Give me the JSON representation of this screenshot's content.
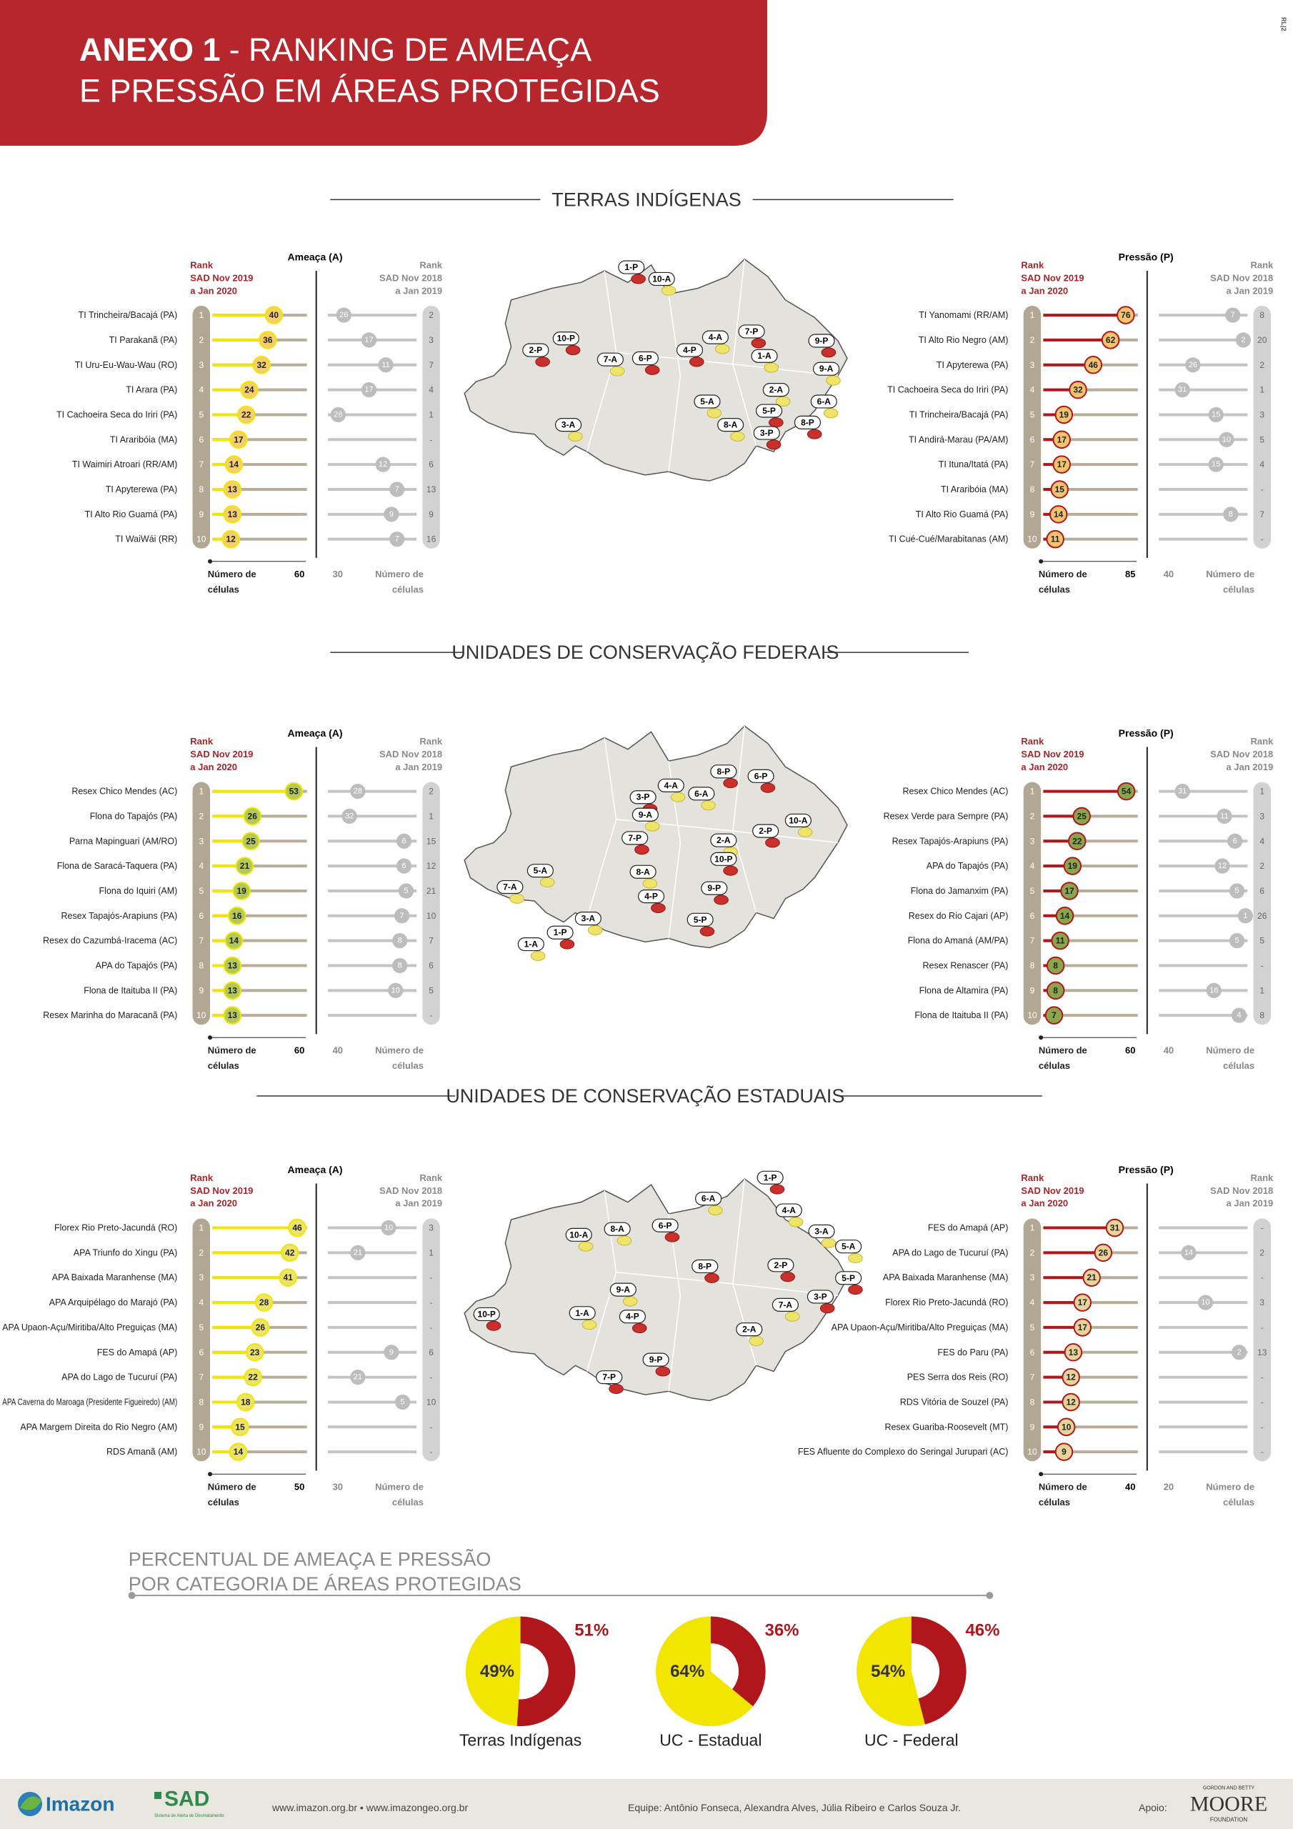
{
  "header": {
    "title_bold": "ANEXO 1",
    "title_rest": "- RANKING DE AMEAÇA",
    "title_line2": "E PRESSÃO EM ÁREAS PROTEGIDAS",
    "side_note": "RL|2"
  },
  "sections": [
    {
      "title": "TERRAS INDÍGENAS",
      "threat": {
        "measure": "Ameaça (A)",
        "rank_header": [
          "Rank",
          "SAD Nov 2019",
          "a Jan 2020"
        ],
        "prev_header": [
          "Rank",
          "SAD Nov 2018",
          "a Jan 2019"
        ],
        "axis_label": [
          "Número de",
          "células"
        ],
        "axis_max": 60,
        "prev_axis_max": 30,
        "bar_color": "#f2e500",
        "bubble_color": "#f6cf6a",
        "rows": [
          {
            "rank": 1,
            "name": "TI Trincheira/Bacajá (PA)",
            "value": 40,
            "prev_value": 26,
            "prev_rank": 2
          },
          {
            "rank": 2,
            "name": "TI Parakanã (PA)",
            "value": 36,
            "prev_value": 17,
            "prev_rank": 3
          },
          {
            "rank": 3,
            "name": "TI Uru-Eu-Wau-Wau (RO)",
            "value": 32,
            "prev_value": 11,
            "prev_rank": 7
          },
          {
            "rank": 4,
            "name": "TI Arara (PA)",
            "value": 24,
            "prev_value": 17,
            "prev_rank": 4
          },
          {
            "rank": 5,
            "name": "TI Cachoeira Seca do Iriri (PA)",
            "value": 22,
            "prev_value": 28,
            "prev_rank": 1
          },
          {
            "rank": 6,
            "name": "TI Araribóia (MA)",
            "value": 17,
            "prev_value": null,
            "prev_rank": "-"
          },
          {
            "rank": 7,
            "name": "TI Waimiri Atroari (RR/AM)",
            "value": 14,
            "prev_value": 12,
            "prev_rank": 6
          },
          {
            "rank": 8,
            "name": "TI Apyterewa (PA)",
            "value": 13,
            "prev_value": 7,
            "prev_rank": 13
          },
          {
            "rank": 9,
            "name": "TI Alto Rio Guamá (PA)",
            "value": 13,
            "prev_value": 9,
            "prev_rank": 9
          },
          {
            "rank": 10,
            "name": "TI WaiWái (RR)",
            "value": 12,
            "prev_value": 7,
            "prev_rank": 16
          }
        ]
      },
      "pressure": {
        "measure": "Pressão (P)",
        "rank_header": [
          "Rank",
          "SAD Nov 2019",
          "a Jan 2020"
        ],
        "prev_header": [
          "Rank",
          "SAD Nov 2018",
          "a Jan 2019"
        ],
        "axis_label": [
          "Número de",
          "células"
        ],
        "axis_max": 85,
        "prev_axis_max": 40,
        "bar_color": "#b1161c",
        "bubble_color": "#f3c46e",
        "rows": [
          {
            "rank": 1,
            "name": "TI Yanomami (RR/AM)",
            "value": 76,
            "prev_value": 7,
            "prev_rank": 8
          },
          {
            "rank": 2,
            "name": "TI Alto Rio Negro (AM)",
            "value": 62,
            "prev_value": 2,
            "prev_rank": 20
          },
          {
            "rank": 3,
            "name": "TI Apyterewa (PA)",
            "value": 46,
            "prev_value": 26,
            "prev_rank": 2
          },
          {
            "rank": 4,
            "name": "TI Cachoeira Seca do Iriri (PA)",
            "value": 32,
            "prev_value": 31,
            "prev_rank": 1
          },
          {
            "rank": 5,
            "name": "TI Trincheira/Bacajá (PA)",
            "value": 19,
            "prev_value": 15,
            "prev_rank": 3
          },
          {
            "rank": 6,
            "name": "TI Andirá-Marau (PA/AM)",
            "value": 17,
            "prev_value": 10,
            "prev_rank": 5
          },
          {
            "rank": 7,
            "name": "TI Ituna/Itatá (PA)",
            "value": 17,
            "prev_value": 15,
            "prev_rank": 4
          },
          {
            "rank": 8,
            "name": "TI Araribóia (MA)",
            "value": 15,
            "prev_value": null,
            "prev_rank": "-"
          },
          {
            "rank": 9,
            "name": "TI Alto Rio Guamá (PA)",
            "value": 14,
            "prev_value": 8,
            "prev_rank": 7
          },
          {
            "rank": 10,
            "name": "TI Cué-Cué/Marabitanas (AM)",
            "value": 11,
            "prev_value": null,
            "prev_rank": "-"
          }
        ]
      },
      "map_labels": [
        "1-P",
        "10-A",
        "2-P",
        "10-P",
        "7-A",
        "6-P",
        "4-P",
        "4-A",
        "7-P",
        "1-A",
        "9-P",
        "9-A",
        "2-A",
        "5-A",
        "5-P",
        "6-A",
        "8-A",
        "3-P",
        "8-P",
        "3-A"
      ]
    },
    {
      "title": "UNIDADES DE CONSERVAÇÃO FEDERAIS",
      "threat": {
        "measure": "Ameaça (A)",
        "rank_header": [
          "Rank",
          "SAD Nov 2019",
          "a Jan 2020"
        ],
        "prev_header": [
          "Rank",
          "SAD Nov 2018",
          "a Jan 2019"
        ],
        "axis_label": [
          "Número de",
          "células"
        ],
        "axis_max": 60,
        "prev_axis_max": 40,
        "bar_color": "#f2e500",
        "bubble_color": "#b3c95a",
        "rows": [
          {
            "rank": 1,
            "name": "Resex Chico Mendes (AC)",
            "value": 53,
            "prev_value": 28,
            "prev_rank": 2
          },
          {
            "rank": 2,
            "name": "Flona do Tapajós (PA)",
            "value": 26,
            "prev_value": 32,
            "prev_rank": 1
          },
          {
            "rank": 3,
            "name": "Parna Mapinguari (AM/RO)",
            "value": 25,
            "prev_value": 6,
            "prev_rank": 15
          },
          {
            "rank": 4,
            "name": "Flona de Saracá-Taquera (PA)",
            "value": 21,
            "prev_value": 6,
            "prev_rank": 12
          },
          {
            "rank": 5,
            "name": "Flona do Iquiri (AM)",
            "value": 19,
            "prev_value": 5,
            "prev_rank": 21
          },
          {
            "rank": 6,
            "name": "Resex Tapajós-Arapiuns (PA)",
            "value": 16,
            "prev_value": 7,
            "prev_rank": 10
          },
          {
            "rank": 7,
            "name": "Resex do Cazumbá-Iracema (AC)",
            "value": 14,
            "prev_value": 8,
            "prev_rank": 7
          },
          {
            "rank": 8,
            "name": "APA do Tapajós (PA)",
            "value": 13,
            "prev_value": 8,
            "prev_rank": 6
          },
          {
            "rank": 9,
            "name": "Flona de Itaituba II (PA)",
            "value": 13,
            "prev_value": 10,
            "prev_rank": 5
          },
          {
            "rank": 10,
            "name": "Resex Marinha do Maracanã (PA)",
            "value": 13,
            "prev_value": null,
            "prev_rank": "-"
          }
        ]
      },
      "pressure": {
        "measure": "Pressão (P)",
        "rank_header": [
          "Rank",
          "SAD Nov 2019",
          "a Jan 2020"
        ],
        "prev_header": [
          "Rank",
          "SAD Nov 2018",
          "a Jan 2019"
        ],
        "axis_label": [
          "Número de",
          "células"
        ],
        "axis_max": 60,
        "prev_axis_max": 40,
        "bar_color": "#b1161c",
        "bubble_color": "#8aa64c",
        "rows": [
          {
            "rank": 1,
            "name": "Resex Chico Mendes (AC)",
            "value": 54,
            "prev_value": 31,
            "prev_rank": 1
          },
          {
            "rank": 2,
            "name": "Resex Verde para Sempre (PA)",
            "value": 25,
            "prev_value": 11,
            "prev_rank": 3
          },
          {
            "rank": 3,
            "name": "Resex Tapajós-Arapiuns (PA)",
            "value": 22,
            "prev_value": 6,
            "prev_rank": 4
          },
          {
            "rank": 4,
            "name": "APA do Tapajós (PA)",
            "value": 19,
            "prev_value": 12,
            "prev_rank": 2
          },
          {
            "rank": 5,
            "name": "Flona do Jamanxim (PA)",
            "value": 17,
            "prev_value": 5,
            "prev_rank": 6
          },
          {
            "rank": 6,
            "name": "Resex do Rio Cajari (AP)",
            "value": 14,
            "prev_value": 1,
            "prev_rank": 26
          },
          {
            "rank": 7,
            "name": "Flona do Amaná (AM/PA)",
            "value": 11,
            "prev_value": 5,
            "prev_rank": 5
          },
          {
            "rank": 8,
            "name": "Resex Renascer (PA)",
            "value": 8,
            "prev_value": null,
            "prev_rank": "-"
          },
          {
            "rank": 9,
            "name": "Flona de Altamira (PA)",
            "value": 8,
            "prev_value": 16,
            "prev_rank": 1
          },
          {
            "rank": 10,
            "name": "Flona de Itaituba II (PA)",
            "value": 7,
            "prev_value": 4,
            "prev_rank": 8
          }
        ]
      },
      "map_labels": [
        "8-P",
        "6-P",
        "4-A",
        "3-P",
        "6-A",
        "9-A",
        "10-A",
        "2-P",
        "7-P",
        "2-A",
        "10-P",
        "8-A",
        "9-P",
        "4-P",
        "5-A",
        "7-A",
        "3-A",
        "1-P",
        "1-A",
        "5-P"
      ]
    },
    {
      "title": "UNIDADES DE CONSERVAÇÃO ESTADUAIS",
      "threat": {
        "measure": "Ameaça (A)",
        "rank_header": [
          "Rank",
          "SAD Nov 2019",
          "a Jan 2020"
        ],
        "prev_header": [
          "Rank",
          "SAD Nov 2018",
          "a Jan 2019"
        ],
        "axis_label": [
          "Número de",
          "células"
        ],
        "axis_max": 50,
        "prev_axis_max": 30,
        "bar_color": "#f2e500",
        "bubble_color": "#ece36a",
        "rows": [
          {
            "rank": 1,
            "name": "Florex Rio Preto-Jacundá (RO)",
            "value": 46,
            "prev_value": 10,
            "prev_rank": 3
          },
          {
            "rank": 2,
            "name": "APA Triunfo do Xingu (PA)",
            "value": 42,
            "prev_value": 21,
            "prev_rank": 1
          },
          {
            "rank": 3,
            "name": "APA Baixada Maranhense (MA)",
            "value": 41,
            "prev_value": null,
            "prev_rank": "-"
          },
          {
            "rank": 4,
            "name": "APA Arquipélago do Marajó (PA)",
            "value": 28,
            "prev_value": null,
            "prev_rank": "-"
          },
          {
            "rank": 5,
            "name": "APA Upaon-Açu/Miritiba/Alto Preguiças (MA)",
            "value": 26,
            "prev_value": null,
            "prev_rank": "-"
          },
          {
            "rank": 6,
            "name": "FES do Amapá (AP)",
            "value": 23,
            "prev_value": 9,
            "prev_rank": 6
          },
          {
            "rank": 7,
            "name": "APA do Lago de Tucuruí (PA)",
            "value": 22,
            "prev_value": 21,
            "prev_rank": "-"
          },
          {
            "rank": 8,
            "name": "APA Caverna do Maroaga (Presidente Figueiredo) (AM)",
            "value": 18,
            "prev_value": 5,
            "prev_rank": 10
          },
          {
            "rank": 9,
            "name": "APA Margem Direita do Rio Negro (AM)",
            "value": 15,
            "prev_value": null,
            "prev_rank": "-"
          },
          {
            "rank": 10,
            "name": "RDS Amanã (AM)",
            "value": 14,
            "prev_value": null,
            "prev_rank": "-"
          }
        ]
      },
      "pressure": {
        "measure": "Pressão (P)",
        "rank_header": [
          "Rank",
          "SAD Nov 2019",
          "a Jan 2020"
        ],
        "prev_header": [
          "Rank",
          "SAD Nov 2018",
          "a Jan 2019"
        ],
        "axis_label": [
          "Número de",
          "células"
        ],
        "axis_max": 40,
        "prev_axis_max": 20,
        "bar_color": "#b1161c",
        "bubble_color": "#e7d49b",
        "rows": [
          {
            "rank": 1,
            "name": "FES do Amapá (AP)",
            "value": 31,
            "prev_value": null,
            "prev_rank": "-"
          },
          {
            "rank": 2,
            "name": "APA do Lago de Tucuruí (PA)",
            "value": 26,
            "prev_value": 14,
            "prev_rank": 2
          },
          {
            "rank": 3,
            "name": "APA Baixada Maranhense (MA)",
            "value": 21,
            "prev_value": null,
            "prev_rank": "-"
          },
          {
            "rank": 4,
            "name": "Florex Rio Preto-Jacundá (RO)",
            "value": 17,
            "prev_value": 10,
            "prev_rank": 3
          },
          {
            "rank": 5,
            "name": "APA Upaon-Açu/Miritiba/Alto Preguiças (MA)",
            "value": 17,
            "prev_value": null,
            "prev_rank": "-"
          },
          {
            "rank": 6,
            "name": "FES do Paru (PA)",
            "value": 13,
            "prev_value": 2,
            "prev_rank": 13
          },
          {
            "rank": 7,
            "name": "PES Serra dos Reis (RO)",
            "value": 12,
            "prev_value": null,
            "prev_rank": "-"
          },
          {
            "rank": 8,
            "name": "RDS Vitória de Souzel (PA)",
            "value": 12,
            "prev_value": null,
            "prev_rank": "-"
          },
          {
            "rank": 9,
            "name": "Resex Guariba-Roosevelt (MT)",
            "value": 10,
            "prev_value": null,
            "prev_rank": "-"
          },
          {
            "rank": 10,
            "name": "FES Afluente do Complexo do Seringal Jurupari (AC)",
            "value": 9,
            "prev_value": null,
            "prev_rank": "-"
          }
        ]
      },
      "map_labels": [
        "1-P",
        "6-A",
        "4-A",
        "6-P",
        "8-A",
        "10-A",
        "3-A",
        "5-A",
        "8-P",
        "2-P",
        "5-P",
        "9-A",
        "3-P",
        "7-A",
        "10-P",
        "1-A",
        "4-P",
        "2-A",
        "9-P",
        "7-P"
      ]
    }
  ],
  "summary": {
    "type": "donut",
    "title": [
      "PERCENTUAL DE AMEAÇA E PRESSÃO",
      "POR CATEGORIA DE ÁREAS PROTEGIDAS"
    ],
    "categories": [
      "Terras Indígenas",
      "UC - Estadual",
      "UC - Federal"
    ],
    "threat_values": [
      49,
      64,
      54
    ],
    "threat_value_labels": [
      "49%",
      "64%",
      "54%"
    ],
    "pressure_values": [
      51,
      36,
      46
    ],
    "pressure_value_labels": [
      "51%",
      "36%",
      "46%"
    ],
    "threat_color": "#f2e500",
    "pressure_color": "#b1161c"
  },
  "footer": {
    "imazon": "Imazon",
    "sad": "SAD",
    "sad_sub": "Sistema de Alerta de Desmatamento",
    "links": "www.imazon.org.br • www.imazongeo.org.br",
    "team": "Equipe: Antônio Fonseca, Alexandra Alves, Júlia Ribeiro e Carlos Souza Jr.",
    "support": "Apoio:",
    "moore_top": "GORDON AND BETTY",
    "moore": "MOORE",
    "moore_bottom": "FOUNDATION"
  }
}
